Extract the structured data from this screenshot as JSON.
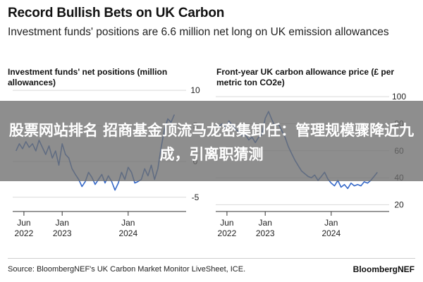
{
  "header": {
    "title": "Record Bullish Bets on UK Carbon",
    "subtitle": "Investment funds' positions are 6.6 million net long on UK emission allowances"
  },
  "banner": {
    "text": "股票网站排名 招商基金顶流马龙密集卸任：管理规模骤降近九成，引离职猜测"
  },
  "footer": {
    "source": "Source: BloombergNEF's UK Carbon Market Monitor LiveSheet, ICE.",
    "brand": "BloombergNEF"
  },
  "colors": {
    "line": "#3568c8",
    "grid": "#d9d9d9",
    "banner": "#6e6e6e"
  },
  "chart_data": [
    {
      "type": "line",
      "title": "Investment funds' net positions (million allowances)",
      "x_ticks": [
        {
          "month": "Jun",
          "year": "2022",
          "t": 2022.42
        },
        {
          "month": "Jan",
          "year": "2023",
          "t": 2023.0
        },
        {
          "month": "Jan",
          "year": "2024",
          "t": 2024.0
        }
      ],
      "xlim": [
        2022.25,
        2024.75
      ],
      "ylim": [
        -7,
        11
      ],
      "y_ticks": [
        10,
        5,
        0,
        -5
      ],
      "series": [
        {
          "name": "Net positions",
          "x": [
            2022.3,
            2022.35,
            2022.4,
            2022.45,
            2022.5,
            2022.55,
            2022.6,
            2022.65,
            2022.7,
            2022.75,
            2022.8,
            2022.85,
            2022.9,
            2022.95,
            2023.0,
            2023.05,
            2023.1,
            2023.15,
            2023.2,
            2023.25,
            2023.3,
            2023.35,
            2023.4,
            2023.45,
            2023.5,
            2023.55,
            2023.6,
            2023.65,
            2023.7,
            2023.75,
            2023.8,
            2023.85,
            2023.9,
            2023.95,
            2024.0,
            2024.05,
            2024.1,
            2024.15,
            2024.2,
            2024.25,
            2024.3,
            2024.35,
            2024.4,
            2024.45,
            2024.5,
            2024.55,
            2024.6,
            2024.65,
            2024.7
          ],
          "y": [
            1.5,
            2.5,
            1.8,
            2.8,
            2.0,
            2.5,
            1.5,
            3.0,
            2.0,
            1.0,
            2.2,
            0.5,
            1.5,
            -0.5,
            2.5,
            1.0,
            0.5,
            -1.0,
            -1.8,
            -2.5,
            -3.5,
            -2.8,
            -1.5,
            -2.2,
            -3.2,
            -2.5,
            -1.8,
            -3.0,
            -2.0,
            -2.8,
            -4.0,
            -3.0,
            -1.5,
            -2.5,
            -0.8,
            -1.5,
            -3.0,
            -2.8,
            -2.5,
            -1.0,
            -2.0,
            -0.5,
            -2.5,
            -1.0,
            2.0,
            4.5,
            6.0,
            5.5,
            6.6
          ]
        }
      ]
    },
    {
      "type": "line",
      "title": "Front-year UK carbon allowance price (£ per metric ton CO2e)",
      "x_ticks": [
        {
          "month": "Jun",
          "year": "2022",
          "t": 2022.42
        },
        {
          "month": "Jan",
          "year": "2023",
          "t": 2023.0
        },
        {
          "month": "Jan",
          "year": "2024",
          "t": 2024.0
        }
      ],
      "xlim": [
        2022.25,
        2024.75
      ],
      "ylim": [
        15,
        110
      ],
      "y_ticks": [
        100,
        80,
        60,
        40,
        20
      ],
      "series": [
        {
          "name": "UKA price",
          "x": [
            2022.3,
            2022.35,
            2022.4,
            2022.45,
            2022.5,
            2022.55,
            2022.6,
            2022.65,
            2022.7,
            2022.75,
            2022.8,
            2022.85,
            2022.9,
            2022.95,
            2023.0,
            2023.05,
            2023.1,
            2023.15,
            2023.2,
            2023.25,
            2023.3,
            2023.35,
            2023.4,
            2023.45,
            2023.5,
            2023.55,
            2023.6,
            2023.65,
            2023.7,
            2023.75,
            2023.8,
            2023.85,
            2023.9,
            2023.95,
            2024.0,
            2024.05,
            2024.1,
            2024.15,
            2024.2,
            2024.25,
            2024.3,
            2024.35,
            2024.4,
            2024.45,
            2024.5,
            2024.55,
            2024.6,
            2024.65,
            2024.7
          ],
          "y": [
            78,
            80,
            77,
            82,
            79,
            76,
            74,
            71,
            72,
            68,
            70,
            66,
            70,
            72,
            84,
            89,
            83,
            78,
            80,
            75,
            70,
            63,
            58,
            53,
            49,
            45,
            43,
            41,
            40,
            42,
            38,
            41,
            44,
            39,
            36,
            34,
            38,
            33,
            35,
            32,
            36,
            34,
            35,
            34,
            37,
            36,
            38,
            41,
            44
          ]
        }
      ]
    }
  ]
}
